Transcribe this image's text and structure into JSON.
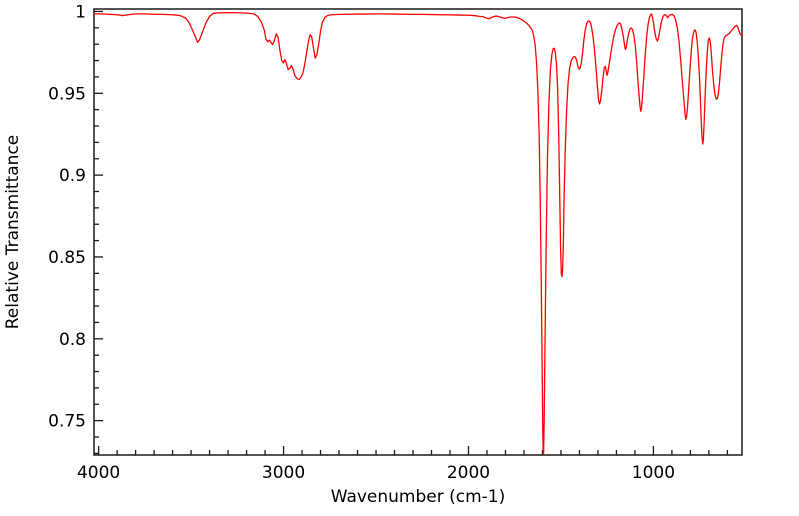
{
  "chart_data": {
    "type": "line",
    "title": "",
    "xlabel": "Wavenumber (cm-1)",
    "ylabel": "Relative Transmittance",
    "x_axis_reversed": true,
    "xlim": [
      4025,
      521
    ],
    "ylim": [
      0.729,
      1.0015
    ],
    "grid": false,
    "legend_position": "none",
    "x_ticks_major": [
      4000,
      3000,
      2000,
      1000
    ],
    "x_tick_labels": [
      "4000",
      "3000",
      "2000",
      "1000"
    ],
    "x_minor_step": 100,
    "y_ticks_major": [
      0.75,
      0.8,
      0.85,
      0.9,
      0.95,
      1.0
    ],
    "y_tick_labels": [
      "0.75",
      "0.8",
      "0.85",
      "0.9",
      "0.95",
      "1"
    ],
    "y_minor_step": 0.01,
    "line_color": "#ff0000",
    "axis_color": "#1a1a1a",
    "series": [
      {
        "name": "IR spectrum",
        "points": [
          [
            4025,
            0.9985
          ],
          [
            4000,
            0.9985
          ],
          [
            3950,
            0.9983
          ],
          [
            3900,
            0.998
          ],
          [
            3870,
            0.9975
          ],
          [
            3840,
            0.998
          ],
          [
            3800,
            0.9985
          ],
          [
            3750,
            0.9985
          ],
          [
            3700,
            0.9983
          ],
          [
            3650,
            0.9982
          ],
          [
            3600,
            0.998
          ],
          [
            3560,
            0.9975
          ],
          [
            3530,
            0.996
          ],
          [
            3510,
            0.993
          ],
          [
            3490,
            0.988
          ],
          [
            3475,
            0.984
          ],
          [
            3465,
            0.9812
          ],
          [
            3455,
            0.9825
          ],
          [
            3440,
            0.987
          ],
          [
            3420,
            0.993
          ],
          [
            3400,
            0.997
          ],
          [
            3380,
            0.9988
          ],
          [
            3350,
            0.9992
          ],
          [
            3300,
            0.9993
          ],
          [
            3250,
            0.9992
          ],
          [
            3200,
            0.999
          ],
          [
            3160,
            0.9985
          ],
          [
            3140,
            0.997
          ],
          [
            3120,
            0.9935
          ],
          [
            3104,
            0.9885
          ],
          [
            3095,
            0.983
          ],
          [
            3085,
            0.9815
          ],
          [
            3077,
            0.9825
          ],
          [
            3068,
            0.981
          ],
          [
            3060,
            0.9798
          ],
          [
            3050,
            0.982
          ],
          [
            3040,
            0.9862
          ],
          [
            3030,
            0.9845
          ],
          [
            3020,
            0.9765
          ],
          [
            3010,
            0.97
          ],
          [
            3001,
            0.9685
          ],
          [
            2993,
            0.9705
          ],
          [
            2985,
            0.9685
          ],
          [
            2975,
            0.9645
          ],
          [
            2965,
            0.9655
          ],
          [
            2957,
            0.967
          ],
          [
            2948,
            0.9645
          ],
          [
            2938,
            0.9605
          ],
          [
            2925,
            0.9588
          ],
          [
            2915,
            0.9585
          ],
          [
            2905,
            0.96
          ],
          [
            2895,
            0.9625
          ],
          [
            2885,
            0.968
          ],
          [
            2875,
            0.975
          ],
          [
            2865,
            0.982
          ],
          [
            2856,
            0.9858
          ],
          [
            2848,
            0.9845
          ],
          [
            2840,
            0.979
          ],
          [
            2829,
            0.9715
          ],
          [
            2820,
            0.9735
          ],
          [
            2810,
            0.98
          ],
          [
            2800,
            0.988
          ],
          [
            2790,
            0.9935
          ],
          [
            2775,
            0.9965
          ],
          [
            2760,
            0.9976
          ],
          [
            2740,
            0.998
          ],
          [
            2700,
            0.9982
          ],
          [
            2650,
            0.9983
          ],
          [
            2600,
            0.9984
          ],
          [
            2550,
            0.9984
          ],
          [
            2500,
            0.9985
          ],
          [
            2450,
            0.9985
          ],
          [
            2400,
            0.9984
          ],
          [
            2350,
            0.9983
          ],
          [
            2300,
            0.9982
          ],
          [
            2250,
            0.9982
          ],
          [
            2200,
            0.9981
          ],
          [
            2150,
            0.998
          ],
          [
            2100,
            0.9979
          ],
          [
            2050,
            0.9978
          ],
          [
            2000,
            0.9977
          ],
          [
            1970,
            0.9975
          ],
          [
            1940,
            0.997
          ],
          [
            1920,
            0.9968
          ],
          [
            1905,
            0.996
          ],
          [
            1892,
            0.9956
          ],
          [
            1880,
            0.996
          ],
          [
            1865,
            0.9968
          ],
          [
            1850,
            0.9972
          ],
          [
            1835,
            0.9968
          ],
          [
            1820,
            0.9962
          ],
          [
            1810,
            0.996
          ],
          [
            1802,
            0.9958
          ],
          [
            1790,
            0.9962
          ],
          [
            1775,
            0.9966
          ],
          [
            1760,
            0.9966
          ],
          [
            1745,
            0.9965
          ],
          [
            1730,
            0.996
          ],
          [
            1715,
            0.9952
          ],
          [
            1700,
            0.994
          ],
          [
            1685,
            0.9928
          ],
          [
            1670,
            0.991
          ],
          [
            1655,
            0.9885
          ],
          [
            1648,
            0.9855
          ],
          [
            1640,
            0.98
          ],
          [
            1632,
            0.969
          ],
          [
            1625,
            0.952
          ],
          [
            1618,
            0.925
          ],
          [
            1612,
            0.885
          ],
          [
            1606,
            0.83
          ],
          [
            1601,
            0.775
          ],
          [
            1598,
            0.742
          ],
          [
            1596,
            0.7295
          ],
          [
            1594,
            0.7295
          ],
          [
            1591,
            0.748
          ],
          [
            1586,
            0.8
          ],
          [
            1580,
            0.858
          ],
          [
            1573,
            0.91
          ],
          [
            1565,
            0.9445
          ],
          [
            1557,
            0.9645
          ],
          [
            1549,
            0.9737
          ],
          [
            1542,
            0.9772
          ],
          [
            1536,
            0.9775
          ],
          [
            1530,
            0.9745
          ],
          [
            1524,
            0.9675
          ],
          [
            1518,
            0.9525
          ],
          [
            1512,
            0.925
          ],
          [
            1507,
            0.89
          ],
          [
            1502,
            0.8555
          ],
          [
            1498,
            0.8395
          ],
          [
            1494,
            0.838
          ],
          [
            1491,
            0.8425
          ],
          [
            1487,
            0.859
          ],
          [
            1483,
            0.886
          ],
          [
            1477,
            0.9145
          ],
          [
            1470,
            0.938
          ],
          [
            1462,
            0.9555
          ],
          [
            1453,
            0.9655
          ],
          [
            1444,
            0.97
          ],
          [
            1435,
            0.9718
          ],
          [
            1428,
            0.9725
          ],
          [
            1421,
            0.972
          ],
          [
            1414,
            0.9695
          ],
          [
            1407,
            0.966
          ],
          [
            1401,
            0.9648
          ],
          [
            1396,
            0.9655
          ],
          [
            1390,
            0.9685
          ],
          [
            1383,
            0.9745
          ],
          [
            1376,
            0.9825
          ],
          [
            1369,
            0.9885
          ],
          [
            1361,
            0.9925
          ],
          [
            1354,
            0.994
          ],
          [
            1348,
            0.9942
          ],
          [
            1341,
            0.9935
          ],
          [
            1334,
            0.99
          ],
          [
            1327,
            0.985
          ],
          [
            1319,
            0.977
          ],
          [
            1311,
            0.9665
          ],
          [
            1303,
            0.9545
          ],
          [
            1296,
            0.9455
          ],
          [
            1291,
            0.9435
          ],
          [
            1286,
            0.9455
          ],
          [
            1280,
            0.951
          ],
          [
            1273,
            0.959
          ],
          [
            1266,
            0.9655
          ],
          [
            1260,
            0.9665
          ],
          [
            1255,
            0.9635
          ],
          [
            1251,
            0.961
          ],
          [
            1247,
            0.9625
          ],
          [
            1241,
            0.9665
          ],
          [
            1233,
            0.9725
          ],
          [
            1224,
            0.979
          ],
          [
            1215,
            0.9845
          ],
          [
            1206,
            0.9885
          ],
          [
            1196,
            0.9915
          ],
          [
            1187,
            0.9928
          ],
          [
            1182,
            0.993
          ],
          [
            1176,
            0.992
          ],
          [
            1169,
            0.9885
          ],
          [
            1161,
            0.9835
          ],
          [
            1155,
            0.9785
          ],
          [
            1151,
            0.9768
          ],
          [
            1147,
            0.978
          ],
          [
            1141,
            0.9825
          ],
          [
            1133,
            0.987
          ],
          [
            1126,
            0.9895
          ],
          [
            1120,
            0.9899
          ],
          [
            1113,
            0.989
          ],
          [
            1106,
            0.9855
          ],
          [
            1098,
            0.979
          ],
          [
            1090,
            0.9685
          ],
          [
            1083,
            0.9565
          ],
          [
            1076,
            0.9465
          ],
          [
            1071,
            0.9405
          ],
          [
            1068,
            0.939
          ],
          [
            1064,
            0.9415
          ],
          [
            1059,
            0.9485
          ],
          [
            1052,
            0.96
          ],
          [
            1045,
            0.9725
          ],
          [
            1037,
            0.984
          ],
          [
            1029,
            0.992
          ],
          [
            1021,
            0.9965
          ],
          [
            1014,
            0.9983
          ],
          [
            1010,
            0.9984
          ],
          [
            1005,
            0.9965
          ],
          [
            999,
            0.9925
          ],
          [
            992,
            0.987
          ],
          [
            985,
            0.9832
          ],
          [
            978,
            0.9819
          ],
          [
            973,
            0.9835
          ],
          [
            966,
            0.988
          ],
          [
            958,
            0.993
          ],
          [
            950,
            0.9965
          ],
          [
            941,
            0.998
          ],
          [
            932,
            0.9978
          ],
          [
            924,
            0.9962
          ],
          [
            916,
            0.9972
          ],
          [
            908,
            0.998
          ],
          [
            899,
            0.9982
          ],
          [
            890,
            0.9975
          ],
          [
            880,
            0.995
          ],
          [
            870,
            0.9895
          ],
          [
            861,
            0.981
          ],
          [
            852,
            0.9695
          ],
          [
            843,
            0.9565
          ],
          [
            835,
            0.9455
          ],
          [
            829,
            0.9375
          ],
          [
            825,
            0.934
          ],
          [
            821,
            0.9355
          ],
          [
            816,
            0.941
          ],
          [
            810,
            0.951
          ],
          [
            803,
            0.9635
          ],
          [
            796,
            0.975
          ],
          [
            789,
            0.9835
          ],
          [
            782,
            0.9875
          ],
          [
            776,
            0.9888
          ],
          [
            770,
            0.9875
          ],
          [
            764,
            0.9825
          ],
          [
            757,
            0.9725
          ],
          [
            750,
            0.9575
          ],
          [
            744,
            0.9405
          ],
          [
            738,
            0.9245
          ],
          [
            733,
            0.919
          ],
          [
            730,
            0.9215
          ],
          [
            726,
            0.931
          ],
          [
            721,
            0.9465
          ],
          [
            715,
            0.9625
          ],
          [
            709,
            0.975
          ],
          [
            703,
            0.9825
          ],
          [
            697,
            0.9838
          ],
          [
            692,
            0.981
          ],
          [
            687,
            0.9745
          ],
          [
            681,
            0.9645
          ],
          [
            674,
            0.9555
          ],
          [
            667,
            0.949
          ],
          [
            660,
            0.9465
          ],
          [
            655,
            0.9465
          ],
          [
            649,
            0.9495
          ],
          [
            643,
            0.956
          ],
          [
            637,
            0.9645
          ],
          [
            630,
            0.9735
          ],
          [
            624,
            0.98
          ],
          [
            618,
            0.9835
          ],
          [
            611,
            0.985
          ],
          [
            604,
            0.9855
          ],
          [
            597,
            0.986
          ],
          [
            590,
            0.9865
          ],
          [
            583,
            0.9875
          ],
          [
            576,
            0.9885
          ],
          [
            569,
            0.9895
          ],
          [
            562,
            0.9905
          ],
          [
            556,
            0.9912
          ],
          [
            550,
            0.9915
          ],
          [
            544,
            0.9905
          ],
          [
            538,
            0.9885
          ],
          [
            532,
            0.9865
          ],
          [
            526,
            0.9856
          ],
          [
            521,
            0.9858
          ]
        ]
      }
    ]
  }
}
